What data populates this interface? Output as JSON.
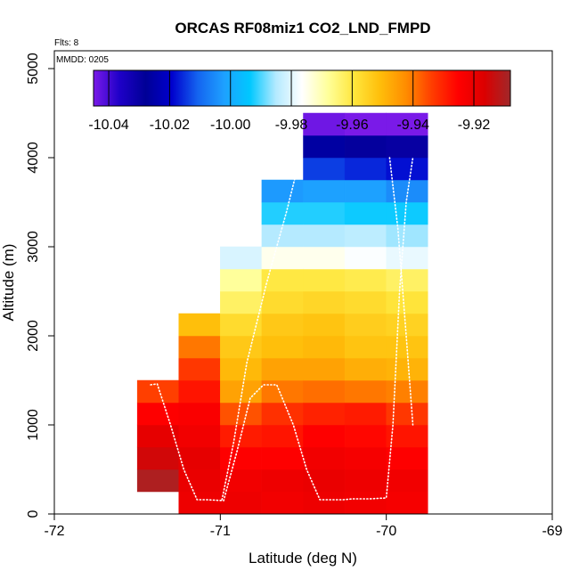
{
  "chart_data": {
    "type": "heatmap",
    "title": "ORCAS RF08miz1 CO2_LND_FMPD",
    "note_flights": "Flts: 8",
    "note_date": "MMDD: 0205",
    "xlabel": "Latitude (deg N)",
    "ylabel": "Altitude (m)",
    "xlim": [
      -72,
      -69
    ],
    "ylim": [
      0,
      5200
    ],
    "x_ticks": [
      -72,
      -71,
      -70,
      -69
    ],
    "x_tick_labels": [
      "-72",
      "-71",
      "-70",
      "-69"
    ],
    "y_ticks": [
      0,
      1000,
      2000,
      3000,
      4000,
      5000
    ],
    "y_tick_labels": [
      "0",
      "1000",
      "2000",
      "3000",
      "4000",
      "5000"
    ],
    "grid": false,
    "colorbar": {
      "range": [
        -10.045,
        -9.908
      ],
      "ticks": [
        -10.04,
        -10.02,
        -10.0,
        -9.98,
        -9.96,
        -9.94,
        -9.92
      ],
      "tick_labels": [
        "-10.04",
        "-10.02",
        "-10.00",
        "-9.98",
        "-9.96",
        "-9.94",
        "-9.92"
      ],
      "stops": [
        "#7a1ae8",
        "#1e00c8",
        "#000096",
        "#0000cd",
        "#1464f0",
        "#1ea0ff",
        "#00c8ff",
        "#b4eaff",
        "#ffffff",
        "#ffff9a",
        "#ffe63c",
        "#ffbe0a",
        "#ff8c00",
        "#ff3c00",
        "#ff0000",
        "#dc0000",
        "#a0282a"
      ]
    },
    "cell_width_deg": 0.25,
    "cell_height_m": 250,
    "columns": [
      {
        "lat": -71.375,
        "base": 250,
        "values": [
          -9.91,
          -9.915,
          -9.919,
          -9.925,
          -9.934
        ]
      },
      {
        "lat": -71.125,
        "base": 0,
        "values": [
          -9.921,
          -9.92,
          -9.919,
          -9.922,
          -9.924,
          -9.928,
          -9.933,
          -9.94,
          -9.951
        ]
      },
      {
        "lat": -70.875,
        "base": 0,
        "values": [
          -9.921,
          -9.922,
          -9.925,
          -9.929,
          -9.936,
          -9.946,
          -9.95,
          -9.953,
          -9.957,
          -9.963,
          -9.968,
          -9.981
        ]
      },
      {
        "lat": -70.625,
        "base": 0,
        "values": [
          -9.922,
          -9.921,
          -9.925,
          -9.928,
          -9.932,
          -9.94,
          -9.946,
          -9.951,
          -9.953,
          -9.957,
          -9.96,
          -9.975,
          -9.985,
          -9.992,
          -10.003
        ]
      },
      {
        "lat": -70.375,
        "base": 0,
        "values": [
          -9.921,
          -9.92,
          -9.922,
          -9.925,
          -9.93,
          -9.939,
          -9.946,
          -9.95,
          -9.952,
          -9.956,
          -9.96,
          -9.975,
          -9.985,
          -9.992,
          -10.002,
          -10.014,
          -10.026,
          -10.044
        ]
      },
      {
        "lat": -70.125,
        "base": 0,
        "values": [
          -9.922,
          -9.921,
          -9.923,
          -9.926,
          -9.929,
          -9.94,
          -9.948,
          -9.952,
          -9.954,
          -9.957,
          -9.961,
          -9.977,
          -9.984,
          -9.993,
          -10.002,
          -10.016,
          -10.029,
          -10.045
        ]
      },
      {
        "lat": -69.875,
        "base": 0,
        "values": [
          -9.923,
          -9.922,
          -9.925,
          -9.928,
          -9.933,
          -9.941,
          -9.949,
          -9.952,
          -9.955,
          -9.959,
          -9.963,
          -9.979,
          -9.986,
          -9.993,
          -10.005,
          -10.018,
          -10.03,
          -10.045
        ]
      }
    ],
    "flight_track": {
      "lat": [
        -71.42,
        -71.38,
        -71.3,
        -71.22,
        -71.14,
        -71.08,
        -70.98,
        -70.9,
        -70.82,
        -70.74,
        -70.66,
        -70.56,
        -70.48,
        -70.4,
        -70.32,
        -70.26,
        -70.2,
        -70.1,
        -70.0,
        -69.96,
        -69.92,
        -69.88,
        -69.84
      ],
      "alt": [
        1450,
        1460,
        1000,
        500,
        160,
        160,
        150,
        700,
        1300,
        1450,
        1450,
        1000,
        500,
        160,
        160,
        160,
        170,
        170,
        180,
        1000,
        2500,
        3500,
        4000
      ]
    },
    "flight_track_2": {
      "lat": [
        -70.99,
        -70.92,
        -70.84,
        -70.72,
        -70.6,
        -70.52
      ],
      "alt": [
        160,
        800,
        1700,
        2600,
        3400,
        4000
      ]
    },
    "flight_track_3": {
      "lat": [
        -69.98,
        -69.93,
        -69.88,
        -69.84
      ],
      "alt": [
        4000,
        3200,
        2000,
        1000
      ]
    }
  }
}
